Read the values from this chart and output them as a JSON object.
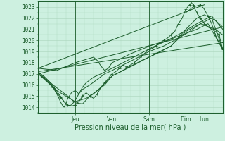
{
  "xlabel": "Pression niveau de la mer( hPa )",
  "bg_color": "#cdf0e0",
  "grid_color": "#aad4bc",
  "line_color": "#1a5c2a",
  "ylim": [
    1013.5,
    1023.5
  ],
  "xlim": [
    0.0,
    5.0
  ],
  "yticks": [
    1014,
    1015,
    1016,
    1017,
    1018,
    1019,
    1020,
    1021,
    1022,
    1023
  ],
  "day_labels": [
    "Jeu",
    "Ven",
    "Sam",
    "Dim",
    "Lun"
  ],
  "day_positions": [
    1.0,
    2.0,
    3.0,
    4.0,
    4.5
  ],
  "lines": [
    {
      "x": [
        0.0,
        0.1,
        0.2,
        0.3,
        0.4,
        0.5,
        0.6,
        0.7,
        0.8,
        0.9,
        1.0,
        1.1,
        1.2,
        1.3,
        1.4,
        1.5,
        1.6,
        1.7,
        1.8,
        1.9,
        2.0,
        2.1,
        2.2,
        2.3,
        2.4,
        2.5,
        2.6,
        2.7,
        2.8,
        2.9,
        3.0,
        3.1,
        3.2,
        3.3,
        3.4,
        3.5,
        3.6,
        3.7,
        3.8,
        3.9,
        4.0,
        4.05,
        4.1,
        4.15,
        4.2,
        4.25,
        4.3,
        4.35,
        4.4,
        4.45,
        4.5,
        4.6,
        4.7,
        4.8,
        4.9,
        5.0
      ],
      "y": [
        1017.0,
        1016.8,
        1016.5,
        1016.2,
        1015.8,
        1015.3,
        1014.9,
        1014.5,
        1014.2,
        1014.1,
        1014.2,
        1014.5,
        1015.0,
        1015.3,
        1015.0,
        1014.8,
        1015.2,
        1015.8,
        1016.2,
        1016.6,
        1017.0,
        1017.2,
        1017.5,
        1017.8,
        1017.6,
        1017.8,
        1018.0,
        1018.3,
        1018.6,
        1018.9,
        1019.2,
        1019.3,
        1019.5,
        1019.8,
        1020.0,
        1020.2,
        1020.5,
        1020.8,
        1021.5,
        1022.0,
        1022.8,
        1023.0,
        1023.2,
        1023.4,
        1023.2,
        1022.8,
        1022.5,
        1022.2,
        1022.0,
        1021.8,
        1021.5,
        1021.2,
        1021.0,
        1020.8,
        1020.5,
        1019.2
      ],
      "marker": "+"
    },
    {
      "x": [
        0.0,
        0.5,
        1.0,
        1.3,
        1.5,
        1.7,
        2.0,
        2.3,
        2.6,
        3.0,
        3.3,
        3.6,
        4.0,
        4.3,
        4.5,
        4.8,
        5.0
      ],
      "y": [
        1017.0,
        1015.5,
        1014.5,
        1014.8,
        1015.2,
        1015.8,
        1016.8,
        1017.3,
        1017.8,
        1018.5,
        1019.0,
        1019.5,
        1021.0,
        1022.0,
        1022.3,
        1021.8,
        1021.2
      ],
      "marker": null
    },
    {
      "x": [
        0.0,
        0.4,
        0.8,
        1.0,
        1.2,
        1.4,
        1.6,
        1.8,
        2.0,
        2.4,
        2.8,
        3.2,
        3.6,
        4.0,
        4.4,
        4.8,
        5.0
      ],
      "y": [
        1017.2,
        1016.0,
        1015.0,
        1014.4,
        1014.3,
        1015.0,
        1015.5,
        1016.0,
        1016.8,
        1017.5,
        1018.2,
        1018.8,
        1019.5,
        1020.8,
        1021.5,
        1021.0,
        1020.5
      ],
      "marker": null
    },
    {
      "x": [
        0.0,
        5.0
      ],
      "y": [
        1017.0,
        1021.2
      ],
      "marker": null
    },
    {
      "x": [
        0.0,
        5.0
      ],
      "y": [
        1017.2,
        1019.8
      ],
      "marker": null
    },
    {
      "x": [
        0.0,
        4.5
      ],
      "y": [
        1017.5,
        1023.2
      ],
      "marker": null
    },
    {
      "x": [
        0.0,
        0.2,
        0.4,
        0.5,
        0.55,
        0.6,
        0.65,
        0.7,
        0.75,
        0.8,
        0.9,
        1.0,
        1.1,
        1.2,
        1.4,
        1.6,
        1.8,
        2.0,
        2.3,
        2.6,
        3.0,
        3.4,
        3.8,
        4.1,
        4.4,
        4.7,
        5.0
      ],
      "y": [
        1017.0,
        1016.5,
        1015.8,
        1015.2,
        1014.9,
        1014.5,
        1014.2,
        1014.0,
        1014.3,
        1014.8,
        1015.3,
        1015.5,
        1015.2,
        1015.6,
        1016.0,
        1016.5,
        1017.0,
        1017.3,
        1017.8,
        1018.3,
        1019.0,
        1019.5,
        1020.2,
        1020.8,
        1021.5,
        1022.0,
        1019.2
      ],
      "marker": null
    },
    {
      "x": [
        0.0,
        0.15,
        0.3,
        0.45,
        0.6,
        0.7,
        0.8,
        0.9,
        1.0,
        1.05,
        1.1,
        1.15,
        1.2,
        1.3,
        1.5,
        1.7,
        2.0,
        2.3,
        2.7,
        3.1,
        3.5,
        3.9,
        4.3,
        4.7,
        5.0
      ],
      "y": [
        1017.1,
        1016.8,
        1016.3,
        1015.7,
        1015.0,
        1014.5,
        1014.1,
        1014.2,
        1014.6,
        1014.9,
        1015.2,
        1015.5,
        1015.8,
        1016.2,
        1016.7,
        1017.0,
        1017.5,
        1018.0,
        1018.7,
        1019.4,
        1020.0,
        1020.7,
        1021.5,
        1022.2,
        1021.0
      ],
      "marker": null
    },
    {
      "x": [
        0.0,
        0.5,
        1.0,
        1.5,
        1.6,
        1.7,
        1.8,
        1.9,
        2.0,
        2.2,
        2.5,
        2.8,
        3.1,
        3.5,
        3.9,
        4.3,
        4.6,
        5.0
      ],
      "y": [
        1017.5,
        1017.3,
        1018.0,
        1018.5,
        1018.2,
        1017.7,
        1017.3,
        1017.5,
        1018.0,
        1018.3,
        1018.8,
        1019.2,
        1019.6,
        1020.0,
        1020.5,
        1021.0,
        1021.5,
        1019.2
      ],
      "marker": null
    },
    {
      "x": [
        4.0,
        4.2,
        4.4,
        4.5,
        4.6,
        4.7,
        4.8,
        4.9,
        5.0
      ],
      "y": [
        1022.5,
        1023.0,
        1023.2,
        1022.8,
        1022.2,
        1021.5,
        1020.5,
        1019.8,
        1019.2
      ],
      "marker": "+"
    }
  ]
}
